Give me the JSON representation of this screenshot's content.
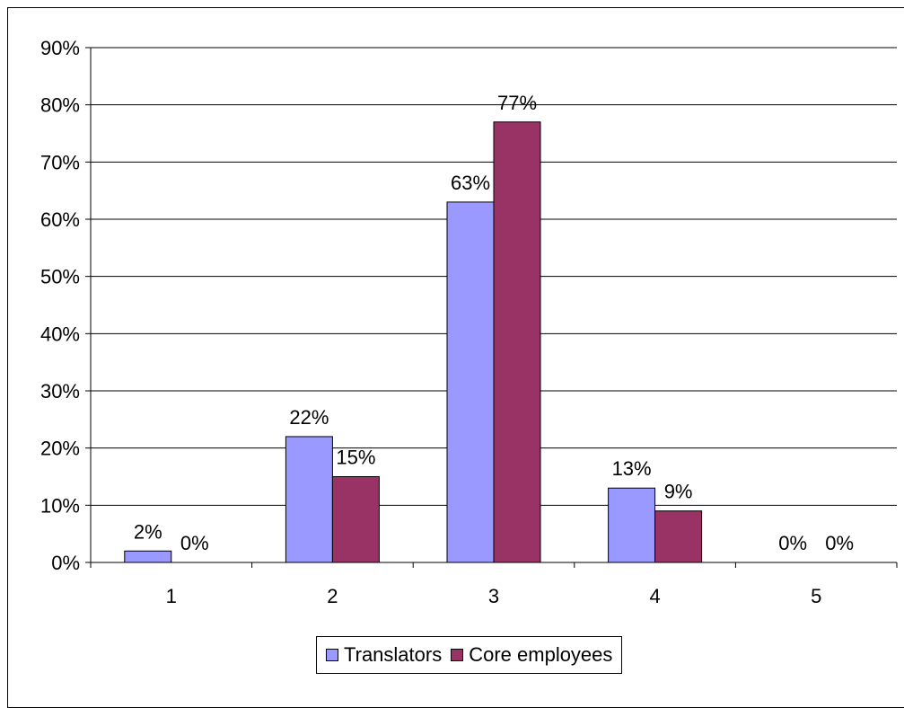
{
  "chart_data": {
    "type": "bar",
    "categories": [
      "1",
      "2",
      "3",
      "4",
      "5"
    ],
    "series": [
      {
        "name": "Translators",
        "values": [
          2,
          22,
          63,
          13,
          0
        ],
        "labels": [
          "2%",
          "22%",
          "63%",
          "13%",
          "0%"
        ],
        "color": "#9999FF"
      },
      {
        "name": "Core employees",
        "values": [
          0,
          15,
          77,
          9,
          0
        ],
        "labels": [
          "0%",
          "15%",
          "77%",
          "9%",
          "0%"
        ],
        "color": "#993366"
      }
    ],
    "ylim": [
      0,
      90
    ],
    "yticks": [
      "0%",
      "10%",
      "20%",
      "30%",
      "40%",
      "50%",
      "60%",
      "70%",
      "80%",
      "90%"
    ],
    "grid": true,
    "legend_position": "bottom",
    "title": "",
    "xlabel": "",
    "ylabel": ""
  }
}
